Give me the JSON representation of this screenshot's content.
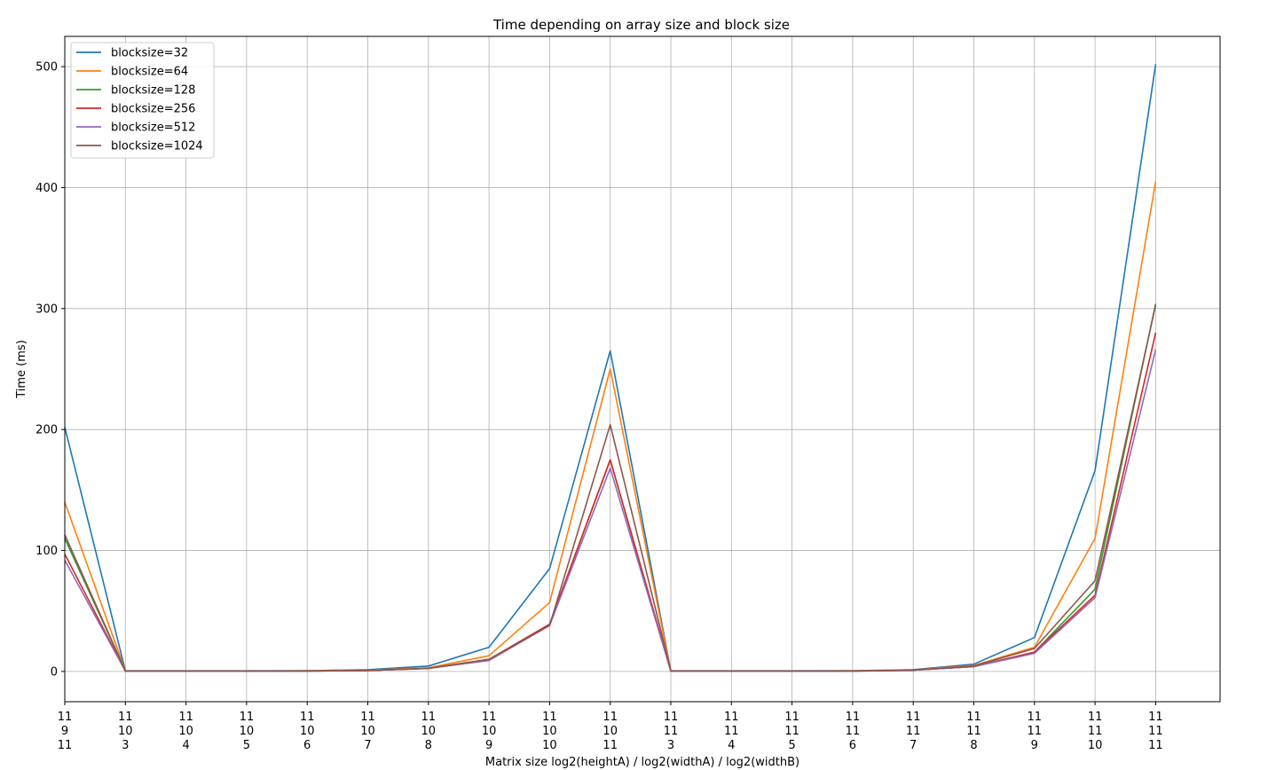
{
  "chart_data": {
    "type": "line",
    "title": "Time depending on array size and block size",
    "xlabel": "Matrix size log2(heightA) / log2(widthA) / log2(widthB)",
    "ylabel": "Time (ms)",
    "ylim": [
      -25,
      525
    ],
    "yticks": [
      0,
      100,
      200,
      300,
      400,
      500
    ],
    "grid": true,
    "legend_position": "top-left",
    "categories": [
      [
        "11",
        "9",
        "11"
      ],
      [
        "11",
        "10",
        "3"
      ],
      [
        "11",
        "10",
        "4"
      ],
      [
        "11",
        "10",
        "5"
      ],
      [
        "11",
        "10",
        "6"
      ],
      [
        "11",
        "10",
        "7"
      ],
      [
        "11",
        "10",
        "8"
      ],
      [
        "11",
        "10",
        "9"
      ],
      [
        "11",
        "10",
        "10"
      ],
      [
        "11",
        "10",
        "11"
      ],
      [
        "11",
        "11",
        "3"
      ],
      [
        "11",
        "11",
        "4"
      ],
      [
        "11",
        "11",
        "5"
      ],
      [
        "11",
        "11",
        "6"
      ],
      [
        "11",
        "11",
        "7"
      ],
      [
        "11",
        "11",
        "8"
      ],
      [
        "11",
        "11",
        "9"
      ],
      [
        "11",
        "11",
        "10"
      ],
      [
        "11",
        "11",
        "11"
      ]
    ],
    "series": [
      {
        "name": "blocksize=32",
        "color": "#1f77b4",
        "values": [
          202,
          0.5,
          0.5,
          0.5,
          0.6,
          1.5,
          4.5,
          20,
          85,
          265,
          0.5,
          0.5,
          0.5,
          0.6,
          1.5,
          6,
          28,
          166,
          502
        ]
      },
      {
        "name": "blocksize=64",
        "color": "#ff7f0e",
        "values": [
          140,
          0.4,
          0.4,
          0.4,
          0.5,
          1,
          3,
          13,
          57,
          250,
          0.4,
          0.4,
          0.4,
          0.5,
          1.2,
          5,
          20,
          110,
          405
        ]
      },
      {
        "name": "blocksize=128",
        "color": "#2ca02c",
        "values": [
          110,
          0.3,
          0.3,
          0.3,
          0.4,
          0.8,
          2.5,
          10,
          39,
          175,
          0.3,
          0.3,
          0.3,
          0.4,
          1,
          4,
          16,
          68,
          304
        ]
      },
      {
        "name": "blocksize=256",
        "color": "#d62728",
        "values": [
          97,
          0.3,
          0.3,
          0.3,
          0.4,
          0.8,
          2.5,
          10,
          39,
          175,
          0.3,
          0.3,
          0.3,
          0.4,
          1,
          4,
          16,
          63,
          280
        ]
      },
      {
        "name": "blocksize=512",
        "color": "#9467bd",
        "values": [
          92,
          0.3,
          0.3,
          0.3,
          0.4,
          0.8,
          2.5,
          9,
          38,
          168,
          0.3,
          0.3,
          0.3,
          0.4,
          1,
          4,
          15,
          61,
          266
        ]
      },
      {
        "name": "blocksize=1024",
        "color": "#8c564b",
        "values": [
          113,
          0.3,
          0.3,
          0.3,
          0.4,
          0.8,
          2.5,
          10,
          38,
          204,
          0.3,
          0.3,
          0.3,
          0.4,
          1.2,
          4.5,
          19,
          75,
          303
        ]
      }
    ]
  }
}
